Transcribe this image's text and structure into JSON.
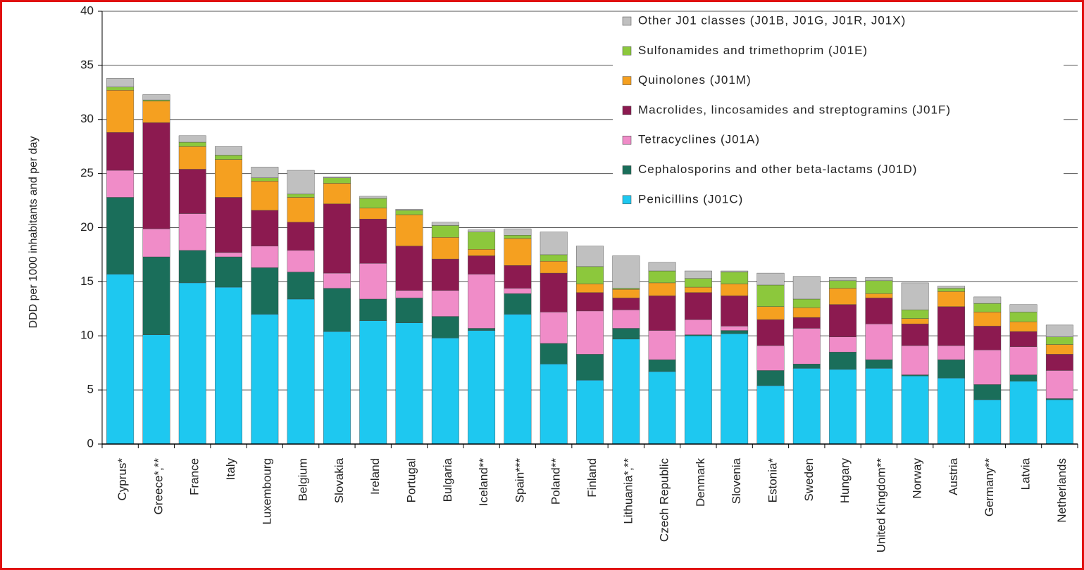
{
  "chart_data": {
    "type": "stacked_bar",
    "y_label": "DDD per 1000 inhabitants and per day",
    "categories": [
      "Cyprus*",
      "Greece*,**",
      "France",
      "Italy",
      "Luxembourg",
      "Belgium",
      "Slovakia",
      "Ireland",
      "Portugal",
      "Bulgaria",
      "Iceland**",
      "Spain***",
      "Poland**",
      "Finland",
      "Lithuania*,**",
      "Czech Republic",
      "Denmark",
      "Slovenia",
      "Estonia*",
      "Sweden",
      "Hungary",
      "United Kingdom**",
      "Norway",
      "Austria",
      "Germany**",
      "Latvia",
      "Netherlands"
    ],
    "series": [
      {
        "name": "Penicillins (J01C)",
        "color": "#1ec8f0",
        "values": [
          15.7,
          10.1,
          14.9,
          14.5,
          12.0,
          13.4,
          10.4,
          11.4,
          11.2,
          9.8,
          10.5,
          12.0,
          7.4,
          5.9,
          9.7,
          6.7,
          10.0,
          10.2,
          5.4,
          7.0,
          6.9,
          7.0,
          6.3,
          6.1,
          4.1,
          5.8,
          4.1
        ]
      },
      {
        "name": "Cephalosporins and other beta-lactams (J01D)",
        "color": "#1a6e5a",
        "values": [
          7.1,
          7.2,
          3.0,
          2.8,
          4.3,
          2.5,
          4.0,
          2.0,
          2.3,
          2.0,
          0.2,
          1.9,
          1.9,
          2.4,
          1.0,
          1.1,
          0.1,
          0.3,
          1.4,
          0.4,
          1.6,
          0.8,
          0.1,
          1.7,
          1.4,
          0.6,
          0.1
        ]
      },
      {
        "name": "Tetracyclines (J01A)",
        "color": "#f08cc8",
        "values": [
          2.5,
          2.6,
          3.4,
          0.4,
          2.0,
          2.0,
          1.4,
          3.3,
          0.7,
          2.4,
          5.0,
          0.5,
          2.9,
          4.0,
          1.7,
          2.7,
          1.4,
          0.4,
          2.3,
          3.3,
          1.4,
          3.3,
          2.7,
          1.3,
          3.2,
          2.6,
          2.6
        ]
      },
      {
        "name": "Macrolides, lincosamides and streptogramins (J01F)",
        "color": "#8c1a50",
        "values": [
          3.5,
          9.8,
          4.1,
          5.1,
          3.3,
          2.6,
          6.4,
          4.1,
          4.1,
          2.9,
          1.7,
          2.1,
          3.6,
          1.7,
          1.1,
          3.2,
          2.5,
          2.8,
          2.4,
          1.0,
          3.0,
          2.4,
          2.0,
          3.6,
          2.2,
          1.4,
          1.5
        ]
      },
      {
        "name": "Quinolones (J01M)",
        "color": "#f5a020",
        "values": [
          3.9,
          2.0,
          2.1,
          3.5,
          2.7,
          2.3,
          1.9,
          1.0,
          2.9,
          2.0,
          0.6,
          2.5,
          1.1,
          0.8,
          0.8,
          1.2,
          0.5,
          1.1,
          1.2,
          0.9,
          1.5,
          0.4,
          0.5,
          1.4,
          1.3,
          0.9,
          0.9
        ]
      },
      {
        "name": "Sulfonamides and trimethoprim (J01E)",
        "color": "#8cc83c",
        "values": [
          0.3,
          0.1,
          0.4,
          0.4,
          0.3,
          0.3,
          0.5,
          0.9,
          0.4,
          1.1,
          1.6,
          0.3,
          0.6,
          1.6,
          0.1,
          1.1,
          0.8,
          1.1,
          2.0,
          0.8,
          0.7,
          1.2,
          0.8,
          0.3,
          0.8,
          0.9,
          0.7
        ]
      },
      {
        "name": "Other J01 classes (J01B, J01G, J01R, J01X)",
        "color": "#c0c0c0",
        "values": [
          0.8,
          0.5,
          0.6,
          0.8,
          1.0,
          2.2,
          0.1,
          0.2,
          0.1,
          0.3,
          0.2,
          0.6,
          2.1,
          1.9,
          3.0,
          0.8,
          0.7,
          0.1,
          1.1,
          2.1,
          0.3,
          0.3,
          2.5,
          0.2,
          0.6,
          0.7,
          1.1
        ]
      }
    ],
    "ylim": [
      0,
      40
    ],
    "yticks": [
      0,
      5,
      10,
      15,
      20,
      25,
      30,
      35,
      40
    ],
    "grid": true,
    "legend_position": "top-right"
  }
}
